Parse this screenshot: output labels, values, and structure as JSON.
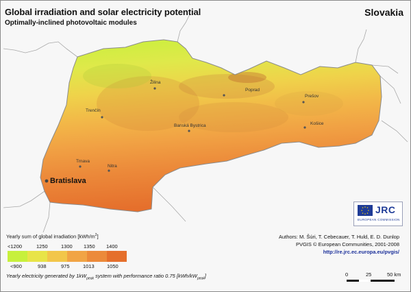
{
  "header": {
    "title": "Global irradiation and solar electricity potential",
    "subtitle": "Optimally-inclined photovoltaic modules",
    "country": "Slovakia"
  },
  "cities": {
    "zilina": "Žilina",
    "poprad": "Poprad",
    "presov": "Prešov",
    "trencin": "Trenčín",
    "banska_bystrica": "Banská Bystrica",
    "kosice": "Košice",
    "trnava": "Trnava",
    "nitra": "Nitra",
    "bratislava": "Bratislava"
  },
  "legend": {
    "irradiation_title_pre": "Yearly sum of global irradiation [kWh/m",
    "irradiation_title_sup": "2",
    "irradiation_title_post": "]",
    "irradiation_labels": [
      "<1200",
      "1250",
      "1300",
      "1350",
      "1400"
    ],
    "electricity_labels": [
      "<900",
      "938",
      "975",
      "1013",
      "1050"
    ],
    "colors": [
      "#c7f03c",
      "#e8e448",
      "#f2c64a",
      "#f1a445",
      "#ec8a3a",
      "#e56f2c"
    ],
    "footnote_pre": "Yearly electricity generated by 1kW",
    "footnote_sub1": "peak",
    "footnote_mid": " system with performance ratio 0.75 [kWh/kW",
    "footnote_sub2": "peak",
    "footnote_post": "]"
  },
  "credits": {
    "authors": "Authors: M. Šúri, T. Cebecauer, T. Huld, E. D. Dunlop",
    "copyright": "PVGIS © European Communities, 2001-2008",
    "url": "http://re.jrc.ec.europa.eu/pvgis/"
  },
  "logo": {
    "text": "JRC",
    "subtext": "EUROPEAN COMMISSION"
  },
  "scale": {
    "labels": [
      "0",
      "25",
      "50 km"
    ]
  }
}
